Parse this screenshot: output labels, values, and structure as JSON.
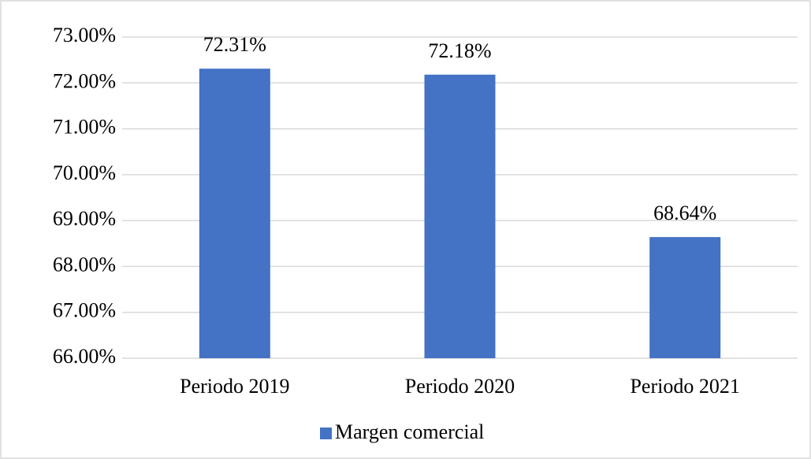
{
  "chart_data": {
    "type": "bar",
    "categories": [
      "Periodo 2019",
      "Periodo 2020",
      "Periodo 2021"
    ],
    "series": [
      {
        "name": "Margen comercial",
        "color": "#4472c4",
        "values": [
          72.31,
          72.18,
          68.64
        ],
        "value_labels": [
          "72.31%",
          "72.18%",
          "68.64%"
        ]
      }
    ],
    "ylim": [
      66,
      73
    ],
    "yticks": [
      {
        "value": 66,
        "label": "66.00%"
      },
      {
        "value": 67,
        "label": "67.00%"
      },
      {
        "value": 68,
        "label": "68.00%"
      },
      {
        "value": 69,
        "label": "69.00%"
      },
      {
        "value": 70,
        "label": "70.00%"
      },
      {
        "value": 71,
        "label": "71.00%"
      },
      {
        "value": 72,
        "label": "72.00%"
      },
      {
        "value": 73,
        "label": "73.00%"
      }
    ],
    "grid": true,
    "legend": "bottom"
  }
}
